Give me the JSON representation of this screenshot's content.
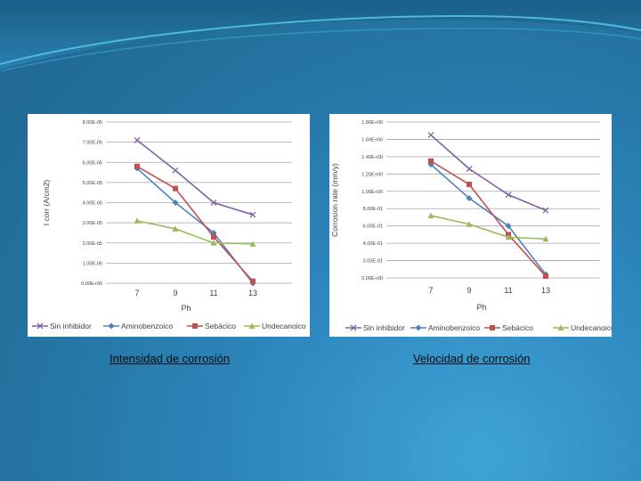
{
  "captions": {
    "left": "Intensidad de corrosión",
    "right": "Velocidad de corrosión"
  },
  "colors": {
    "Sin inhibidor": "#8064a2",
    "Aminobenzoico": "#4f81bd",
    "Sebácico": "#c0504d",
    "Undecanoico": "#9bbb59",
    "grid": "#a6a6a6"
  },
  "chart_data": [
    {
      "type": "line",
      "ylabel": "I corr (A/cm2)",
      "xlabel": "Ph",
      "categories": [
        "7",
        "9",
        "11",
        "13"
      ],
      "ylim": [
        0,
        8e-05
      ],
      "yticks": [
        "0.00E+00",
        "1.00E-05",
        "2.00E-05",
        "3.00E-05",
        "4.00E-05",
        "5.00E-05",
        "6.00E-05",
        "7.00E-05",
        "8.00E-05"
      ],
      "grid": true,
      "legend_position": "bottom",
      "series": [
        {
          "name": "Sin inhibidor",
          "marker": "x",
          "values": [
            7.1e-05,
            5.6e-05,
            4e-05,
            3.4e-05
          ]
        },
        {
          "name": "Aminobenzoico",
          "marker": "diamond",
          "values": [
            5.7e-05,
            4e-05,
            2.5e-05,
            0.0
          ]
        },
        {
          "name": "Sebácico",
          "marker": "square",
          "values": [
            5.8e-05,
            4.7e-05,
            2.3e-05,
            1e-06
          ]
        },
        {
          "name": "Undecanoico",
          "marker": "triangle",
          "values": [
            3.1e-05,
            2.7e-05,
            2e-05,
            1.95e-05
          ]
        }
      ]
    },
    {
      "type": "line",
      "ylabel": "Corrosion rate (mm/y)",
      "xlabel": "Ph",
      "categories": [
        "7",
        "9",
        "11",
        "13"
      ],
      "ylim": [
        0,
        1.8
      ],
      "yticks": [
        "0.00E+00",
        "2.00E-01",
        "4.00E-01",
        "6.00E-01",
        "8.00E-01",
        "1.00E+00",
        "1.20E+00",
        "1.40E+00",
        "1.60E+00",
        "1.80E+00"
      ],
      "grid": true,
      "legend_position": "bottom",
      "series": [
        {
          "name": "Sin inhibidor",
          "marker": "x",
          "values": [
            1.65,
            1.26,
            0.96,
            0.78
          ]
        },
        {
          "name": "Aminobenzoico",
          "marker": "diamond",
          "values": [
            1.31,
            0.92,
            0.6,
            0.04
          ]
        },
        {
          "name": "Sebácico",
          "marker": "square",
          "values": [
            1.35,
            1.08,
            0.5,
            0.02
          ]
        },
        {
          "name": "Undecanoico",
          "marker": "triangle",
          "values": [
            0.72,
            0.62,
            0.47,
            0.45
          ]
        }
      ]
    }
  ]
}
